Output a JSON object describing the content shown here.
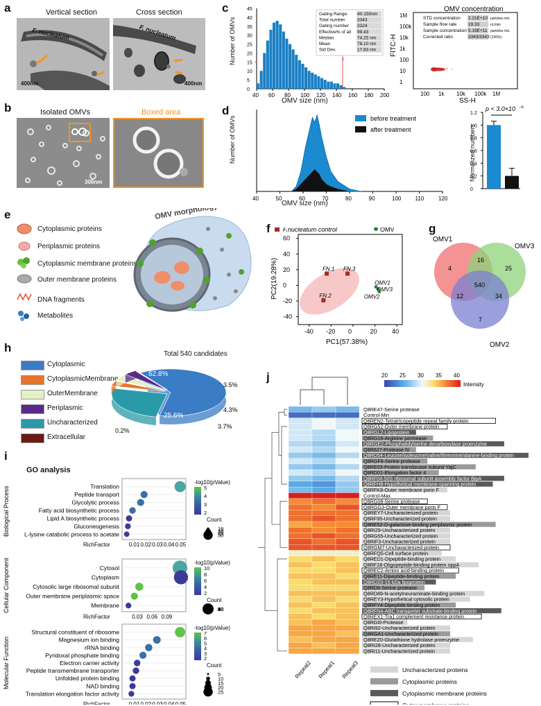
{
  "panels": {
    "a": {
      "label": "a",
      "vertical": "Vertical section",
      "cross": "Cross section",
      "species1": "F. nucleatum",
      "species2": "F. nucleatum",
      "scale1": "400nm",
      "scale2": "400nm"
    },
    "b": {
      "label": "b",
      "isolated": "Isolated OMVs",
      "boxed": "Boxed area",
      "scale": "300nm"
    },
    "c": {
      "label": "c",
      "omv_title": "OMV concentration",
      "ylabel": "Number of OMVs",
      "xlabel": "OMV size (nm)",
      "xticks": [
        "40",
        "60",
        "80",
        "100",
        "120",
        "140",
        "160",
        "180",
        "200"
      ],
      "yticks": [
        "0",
        "5",
        "10",
        "15",
        "20",
        "25",
        "30",
        "35",
        "40",
        "45"
      ],
      "stats": [
        [
          "Gating Range:",
          "40-150nm"
        ],
        [
          "Total number",
          "3343"
        ],
        [
          "Gating number",
          "3324"
        ],
        [
          "Effective% of all",
          "99.43"
        ],
        [
          "Median",
          "74.25 nm"
        ],
        [
          "Mean",
          "78.10 nm"
        ],
        [
          "Std Dev.",
          "17.83 nm"
        ]
      ],
      "conc": [
        [
          "STD concentration",
          "2.21E+10",
          "particles /mL"
        ],
        [
          "Sample flow rate",
          "19.33",
          "nL/min"
        ],
        [
          "Sample concentration",
          "5.19E+11",
          "particles /mL"
        ],
        [
          "Corrected ratio",
          "3343/3343",
          "(100%)"
        ]
      ],
      "fitc_ylabel": "FITC-H",
      "fitc_xlabel": "SS-H",
      "fitc_yticks": [
        "1M",
        "100k",
        "10k",
        "1k",
        "100",
        "10",
        "1"
      ],
      "fitc_xticks": [
        "100",
        "1k",
        "10k",
        "100k",
        "1M"
      ]
    },
    "d": {
      "label": "d",
      "ylabel": "Number of OMVs",
      "xlabel": "OMV size (nm)",
      "xticks": [
        "40",
        "50",
        "60",
        "70",
        "80",
        "90",
        "100",
        "110",
        "120"
      ],
      "legend_before": "before treatment",
      "legend_after": "after treatment",
      "bar_ylabel": "Normalized numbers",
      "bar_yticks": [
        "0",
        "0.2",
        "0.4",
        "0.6",
        "0.8",
        "1.0",
        "1.2"
      ],
      "pvalue": "p < 3.0×10",
      "pvalue_exp": "−5"
    },
    "e": {
      "label": "e",
      "title": "OMV morphology",
      "legend": [
        "Cytoplasmic proteins",
        "Periplasmic proteins",
        "Cytoplasmic membrane proteins",
        "Outer membrane proteins",
        "DNA fragments",
        "Metabolites"
      ]
    },
    "f": {
      "label": "f",
      "legend_control": "F.nucleatum control",
      "legend_omv": "OMV",
      "xlabel": "PC1(57.38%)",
      "ylabel": "PC2(19.28%)",
      "xticks": [
        "-40",
        "-20",
        "0",
        "20",
        "40"
      ],
      "yticks": [
        "60",
        "40",
        "20",
        "0",
        "-20",
        "-40"
      ],
      "points": [
        "FN.1",
        "FN.2",
        "FN.3",
        "OMV1",
        "OMV3",
        "OMV2"
      ]
    },
    "g": {
      "label": "g",
      "sets": [
        "OMV1",
        "OMV3",
        "OMV2"
      ],
      "counts": [
        "4",
        "16",
        "25",
        "540",
        "12",
        "34",
        "7"
      ]
    },
    "h": {
      "label": "h",
      "title": "Total 540 candidates",
      "legend": [
        "Cytoplasmic",
        "CytoplasmicMembrane",
        "OuterMembrane",
        "Periplasmic",
        "Uncharacterized",
        "Extracellular"
      ],
      "pcts": [
        "62.8%",
        "25.6%",
        "3.5%",
        "4.3%",
        "3.7%",
        "0.2%"
      ]
    },
    "i": {
      "label": "i",
      "title": "GO analysis",
      "bp": {
        "cat": "Biological Process",
        "terms": [
          "Translation",
          "Peptide transport",
          "Glycolytic process",
          "Fatty acid biosynthetic process",
          "Lipid A biosynthetic process",
          "Gluconeogenesis",
          "L-lysine catabolic process to acetate"
        ],
        "xticks": [
          "0.01",
          "0.02",
          "0.03",
          "0.04",
          "0.05"
        ],
        "legend_title": "-log10(pValue)",
        "legend_vals": [
          "5",
          "4",
          "3",
          "2"
        ],
        "count_vals": [
          "10",
          "15",
          "20",
          "25",
          "30"
        ]
      },
      "cc": {
        "cat": "Cellular Component",
        "terms": [
          "Cytosol",
          "Cytoplasm",
          "Cytosolic large ribosomal subunit",
          "Outer membrane periplasmic space",
          "Membrane"
        ],
        "xticks": [
          "0.03",
          "0.06",
          "0.09"
        ],
        "legend_vals": [
          "10",
          "8",
          "6",
          "4",
          "2"
        ],
        "count_vals": [
          "10",
          "20",
          "30",
          "40",
          "50",
          "60"
        ]
      },
      "mf": {
        "cat": "Molecular Function",
        "terms": [
          "Structural constituent of ribosome",
          "Magnesium ion binding",
          "rRNA binding",
          "Pyridoxal phosphate binding",
          "Electron carrier activity",
          "Peptide transmembrane transporter",
          "Unfolded protein binding",
          "NAD binding",
          "Translation elongation factor activity"
        ],
        "xticks": [
          "0.01",
          "0.02",
          "0.03",
          "0.04",
          "0.05"
        ],
        "legend_vals": [
          "7",
          "6",
          "5",
          "4",
          "3",
          "2"
        ],
        "count_vals": [
          "5",
          "10",
          "15",
          "20",
          "25"
        ]
      },
      "richfactor": "RichFactor",
      "count": "Count"
    },
    "j": {
      "label": "j",
      "scale_ticks": [
        "20",
        "25",
        "30",
        "35",
        "40"
      ],
      "intensity": "Intensity",
      "cols": [
        "Repeat2",
        "Repeat1",
        "Repeat3"
      ],
      "rows": [
        "Q8RE47-Serine protease",
        "Control-Min",
        "Q8REN2-Tetratricopeptide repeat family protein",
        "Q8RG52-Outer membrane protein",
        "Q8RGL2-Lipoprotein",
        "Q8RG16-Arginine permease",
        "Q8RGE2-Phosphatidylserine decarboxylase proenzyme",
        "Q8R627-Protease IV",
        "Q8RD54-Leucine/isoleucine/valine/threonine/alanine-binding protein",
        "Q8RGF6-Serine protease",
        "Q8RE03-Protein translocase subunit YajC",
        "Q8RD01-Elongation factor 4",
        "Q8RF04-50S ribosomal subunit assembly factor BipA",
        "Q8RFH8-Hypothetical membrane-spanning protein",
        "Q8RFK8-Outer membrane porin F",
        "Control-Max",
        "Q8RG08-Serine protease",
        "Q8RGG3-Outer membrane porin F",
        "Q8REY7-Uncharacterized protein",
        "Q8RF95-Uncharacterized protein",
        "Q8RE52-D-galactose-binding periplasmic protein",
        "Q8RI29-Uncharacterized protein",
        "Q8RG55-Uncharacterized protein",
        "Q8RIF3-Uncharacterized protein",
        "Q8RGM7-Uncharacterized protein",
        "Q8RFQ5-Cell surface protein",
        "Q8RED1-Dipeptide-binding protein",
        "Q8RF18-Oligopeptide-binding protein oppA",
        "Q8REC2-Amino acid-binding protein",
        "Q8RE11-Dipeptide-binding protein",
        "Q8RDZ0-15 kDa lipoprotein",
        "Q8RD6-Serine protease",
        "Q8RD89-N-acetylneuraminate-binding protein",
        "Q8REY3-Hypothetical cytosolic protein",
        "Q8RFY4-Dipeptide-binding protein",
        "Q8RFN4-ABC transporter substrate-binding protein",
        "Q8REX1-Tra1 complement resistance protein",
        "Q8RGI0-Protease",
        "Q8RI92-Uncharacterized protein",
        "Q8RGA1-Uncharacterized protein",
        "Q8REZ0-Glutathione hydrolase proenzyme",
        "Q8RI28-Uncharacterized protein",
        "Q8RI11-Uncharacterized protein"
      ],
      "legend": [
        "Uncharacterized proteins",
        "Cytoplasmic proteins",
        "Cytoplasmic membrane proteins",
        "Outer membrane proteins"
      ]
    }
  },
  "chart_data": [
    {
      "type": "bar",
      "title": "",
      "xlabel": "OMV size (nm)",
      "ylabel": "Number of OMVs",
      "xlim": [
        40,
        200
      ],
      "ylim": [
        0,
        45
      ],
      "categories": [
        42,
        46,
        50,
        54,
        58,
        62,
        66,
        70,
        74,
        78,
        82,
        86,
        90,
        94,
        98,
        102,
        106,
        110,
        114,
        118,
        122,
        126,
        130,
        134,
        138,
        142,
        146,
        150
      ],
      "values": [
        3,
        10,
        20,
        27,
        33,
        37,
        38,
        36,
        32,
        28,
        25,
        22,
        19,
        16,
        14,
        12,
        10,
        9,
        8,
        7,
        6,
        5,
        4,
        4,
        3,
        3,
        2,
        1
      ]
    },
    {
      "type": "area",
      "title": "",
      "xlabel": "OMV size (nm)",
      "ylabel": "Number of OMVs",
      "xlim": [
        40,
        120
      ],
      "x": [
        55,
        57,
        59,
        61,
        63,
        64,
        65,
        66,
        67,
        68,
        70,
        72,
        75,
        80,
        85
      ],
      "series": [
        {
          "name": "before treatment",
          "values": [
            0,
            2,
            8,
            18,
            26,
            30,
            28,
            31,
            27,
            22,
            14,
            8,
            4,
            1,
            0
          ]
        },
        {
          "name": "after treatment",
          "values": [
            0,
            1,
            3,
            5,
            7,
            8,
            9,
            8,
            7,
            5,
            3,
            2,
            1,
            0,
            0
          ]
        }
      ]
    },
    {
      "type": "bar",
      "title": "",
      "ylabel": "Normalized numbers",
      "ylim": [
        0,
        1.2
      ],
      "categories": [
        "before treatment",
        "after treatment"
      ],
      "values": [
        1.0,
        0.2
      ],
      "errors": [
        0.06,
        0.12
      ],
      "colors": [
        "#1a8ad1",
        "#111111"
      ]
    },
    {
      "type": "scatter",
      "title": "",
      "xlabel": "PC1(57.38%)",
      "ylabel": "PC2(19.28%)",
      "xlim": [
        -50,
        45
      ],
      "ylim": [
        -50,
        65
      ],
      "series": [
        {
          "name": "F.nucleatum control",
          "points": [
            {
              "label": "FN.1",
              "x": -24,
              "y": 15
            },
            {
              "label": "FN.3",
              "x": -5,
              "y": 15
            },
            {
              "label": "FN.2",
              "x": -27,
              "y": -19
            }
          ]
        },
        {
          "name": "OMV",
          "points": [
            {
              "label": "OMV1",
              "x": 21,
              "y": -2
            },
            {
              "label": "OMV3",
              "x": 23,
              "y": -5
            },
            {
              "label": "OMV2",
              "x": 24,
              "y": -8
            }
          ]
        }
      ]
    },
    {
      "type": "pie",
      "title": "Total 540 candidates",
      "categories": [
        "Cytoplasmic",
        "Uncharacterized",
        "CytoplasmicMembrane",
        "OuterMembrane",
        "Periplasmic",
        "Extracellular"
      ],
      "values": [
        62.8,
        25.6,
        3.5,
        4.3,
        3.7,
        0.2
      ]
    },
    {
      "type": "scatter",
      "title": "GO analysis - Biological Process",
      "xlabel": "RichFactor",
      "categories": [
        "Translation",
        "Peptide transport",
        "Glycolytic process",
        "Fatty acid biosynthetic process",
        "Lipid A biosynthetic process",
        "Gluconeogenesis",
        "L-lysine catabolic process to acetate"
      ],
      "x": [
        0.05,
        0.019,
        0.016,
        0.009,
        0.006,
        0.005,
        0.004
      ],
      "count": [
        30,
        8,
        8,
        6,
        5,
        4,
        3
      ],
      "neglog10p": [
        5.2,
        3.2,
        3.6,
        2.6,
        2.3,
        2.1,
        2.0
      ]
    },
    {
      "type": "scatter",
      "title": "GO analysis - Cellular Component",
      "xlabel": "RichFactor",
      "categories": [
        "Cytosol",
        "Cytoplasm",
        "Cytosolic large ribosomal subunit",
        "Outer membrane periplasmic space",
        "Membrane"
      ],
      "x": [
        0.118,
        0.12,
        0.035,
        0.025,
        0.013
      ],
      "count": [
        60,
        55,
        12,
        8,
        4
      ],
      "neglog10p": [
        6,
        2.5,
        9,
        7,
        2
      ]
    },
    {
      "type": "scatter",
      "title": "GO analysis - Molecular Function",
      "xlabel": "RichFactor",
      "categories": [
        "Structural constituent of ribosome",
        "Magnesium ion binding",
        "rRNA binding",
        "Pyridoxal phosphate binding",
        "Electron carrier activity",
        "Peptide transmembrane transporter",
        "Unfolded protein binding",
        "NAD binding",
        "Translation elongation factor activity"
      ],
      "x": [
        0.05,
        0.03,
        0.023,
        0.018,
        0.013,
        0.012,
        0.009,
        0.009,
        0.008
      ],
      "count": [
        25,
        10,
        9,
        8,
        6,
        6,
        5,
        5,
        4
      ],
      "neglog10p": [
        7,
        3.5,
        3.8,
        2.8,
        2.4,
        2.4,
        2.2,
        2.2,
        2.0
      ]
    },
    {
      "type": "heatmap",
      "title": "Intensity",
      "columns": [
        "Repeat2",
        "Repeat1",
        "Repeat3"
      ],
      "scale": [
        20,
        40
      ]
    }
  ]
}
